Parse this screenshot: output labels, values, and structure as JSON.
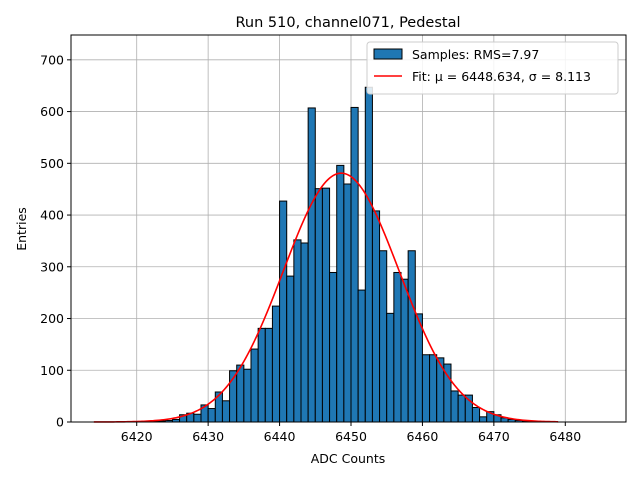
{
  "chart_data": {
    "type": "bar",
    "title": "Run 510, channel071, Pedestal",
    "xlabel": "ADC Counts",
    "ylabel": "Entries",
    "xlim": [
      6410.8,
      6488.5
    ],
    "ylim": [
      0,
      748
    ],
    "xticks": [
      6420,
      6430,
      6440,
      6450,
      6460,
      6470,
      6480
    ],
    "yticks": [
      0,
      100,
      200,
      300,
      400,
      500,
      600,
      700
    ],
    "grid": true,
    "legend_position": "top-right",
    "bin_width": 1,
    "histogram": {
      "name": "Samples: RMS=7.97",
      "color": "#1f77b4",
      "edgecolor": "#000000",
      "bin_left_edges": [
        6422,
        6423,
        6424,
        6425,
        6426,
        6427,
        6428,
        6429,
        6430,
        6431,
        6432,
        6433,
        6434,
        6435,
        6436,
        6437,
        6438,
        6439,
        6440,
        6441,
        6442,
        6443,
        6444,
        6445,
        6446,
        6447,
        6448,
        6449,
        6450,
        6451,
        6452,
        6453,
        6454,
        6455,
        6456,
        6457,
        6458,
        6459,
        6460,
        6461,
        6462,
        6463,
        6464,
        6465,
        6466,
        6467,
        6468,
        6469,
        6470,
        6471,
        6472,
        6473,
        6474,
        6475
      ],
      "counts": [
        1,
        2,
        3,
        5,
        14,
        17,
        15,
        33,
        26,
        58,
        41,
        99,
        110,
        102,
        141,
        181,
        181,
        224,
        427,
        282,
        352,
        346,
        607,
        451,
        452,
        289,
        496,
        460,
        608,
        255,
        647,
        408,
        331,
        210,
        289,
        276,
        331,
        209,
        130,
        130,
        124,
        112,
        60,
        52,
        52,
        28,
        10,
        20,
        14,
        8,
        5,
        3,
        2,
        1
      ]
    },
    "fit": {
      "name": "Fit: μ = 6448.634, σ = 8.113",
      "color": "#ff0000",
      "mu": 6448.634,
      "sigma": 8.113,
      "amplitude": 481,
      "x_range": [
        6414,
        6479
      ]
    },
    "legend": {
      "entries": [
        "Samples: RMS=7.97",
        "Fit: μ = 6448.634, σ = 8.113"
      ]
    }
  }
}
